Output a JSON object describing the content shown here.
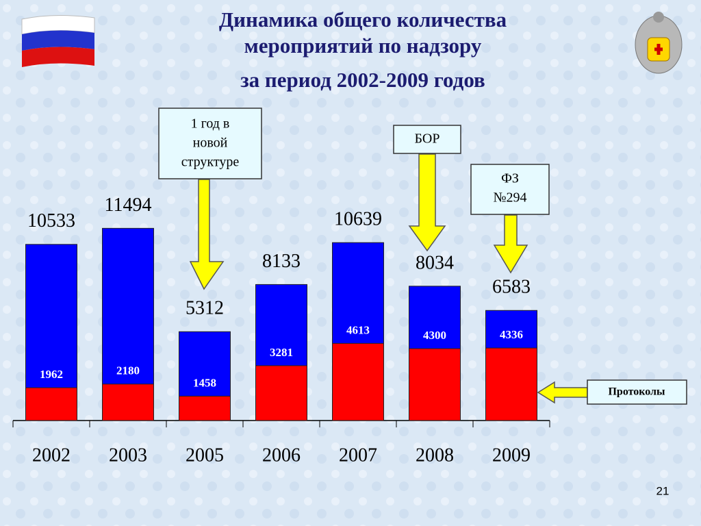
{
  "chart_data": {
    "type": "bar",
    "title": [
      "Динамика общего количества",
      "мероприятий по надзору",
      "за период 2002-2009 годов"
    ],
    "categories": [
      "2002",
      "2003",
      "2005",
      "2006",
      "2007",
      "2008",
      "2009"
    ],
    "overlap": true,
    "series": [
      {
        "color": "#0000ff",
        "values": [
          10533,
          11494,
          5312,
          8133,
          10639,
          8034,
          6583
        ]
      },
      {
        "name": "Протоколы",
        "color": "#ff0000",
        "values": [
          1962,
          2180,
          1458,
          3281,
          4613,
          4300,
          4336
        ]
      }
    ],
    "ylim": [
      0,
      12000
    ],
    "annotations": [
      {
        "lines": [
          "1 год в",
          "новой",
          "структуре"
        ]
      },
      {
        "lines": [
          "БОР"
        ]
      },
      {
        "lines": [
          "ФЗ",
          "№294"
        ]
      }
    ],
    "page_number": "21"
  }
}
